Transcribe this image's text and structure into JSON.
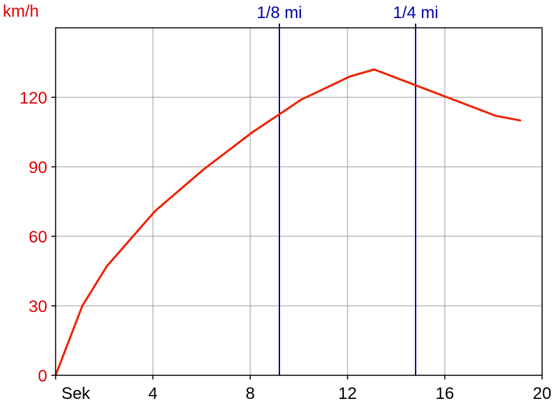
{
  "chart_data": {
    "type": "line",
    "title": "",
    "xlabel": "Sek",
    "ylabel": "km/h",
    "xlim": [
      0,
      20
    ],
    "ylim": [
      0,
      150
    ],
    "x_ticks": [
      {
        "value": 0,
        "label": "Sek"
      },
      {
        "value": 4,
        "label": "4"
      },
      {
        "value": 8,
        "label": "8"
      },
      {
        "value": 12,
        "label": "12"
      },
      {
        "value": 16,
        "label": "16"
      },
      {
        "value": 20,
        "label": "20"
      }
    ],
    "y_ticks": [
      {
        "value": 0,
        "label": "0"
      },
      {
        "value": 30,
        "label": "30"
      },
      {
        "value": 60,
        "label": "60"
      },
      {
        "value": 90,
        "label": "90"
      },
      {
        "value": 120,
        "label": "120"
      }
    ],
    "grid": true,
    "series": [
      {
        "color": "#ee2200",
        "x": [
          0,
          1.1,
          2.1,
          3.1,
          4.1,
          5.1,
          6.1,
          7.1,
          8.1,
          9.1,
          10.1,
          11.1,
          12.1,
          13.1,
          14.1,
          15.1,
          16.1,
          17.1,
          18.1,
          19.1
        ],
        "y": [
          0,
          30,
          47,
          59,
          71,
          80,
          89,
          97,
          105,
          112,
          119,
          124,
          129,
          132,
          128,
          124,
          120,
          116,
          112,
          110
        ]
      }
    ],
    "markers": [
      {
        "label": "1/8 mi",
        "x": 9.2,
        "color": "#0000aa"
      },
      {
        "label": "1/4 mi",
        "x": 14.8,
        "color": "#0000aa"
      }
    ]
  },
  "colors": {
    "tick_y": "#dd0000",
    "grid": "#999999",
    "axes": "#000000",
    "series": "#ee2200",
    "markers": "#0000aa"
  }
}
